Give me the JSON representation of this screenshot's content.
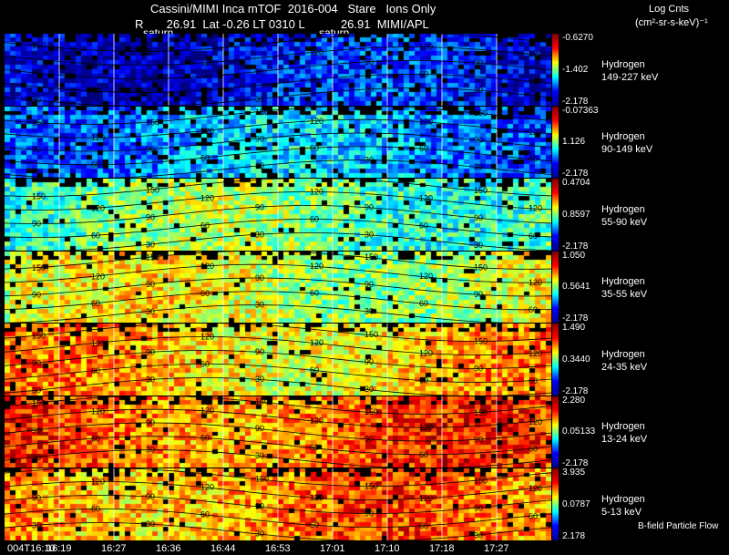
{
  "header": {
    "title": "Cassini/MIMI Inca mTOF  2016-004   Stare   Ions Only",
    "subtitle": "R       26.91  Lat -0.26 LT 0310 L           26.91  MIMI/APL",
    "saturn_label_1": "saturn",
    "saturn_label_2": "saturn",
    "units_title": "Log Cnts",
    "units": "(cm²-sr-s-keV)⁻¹"
  },
  "footer": {
    "bfield_label": "B-field Particle Flow"
  },
  "chart_data": {
    "type": "heatmap",
    "x_ticks": [
      "004T16:10",
      "16:19",
      "16:27",
      "16:36",
      "16:44",
      "16:53",
      "17:01",
      "17:10",
      "17:18",
      "17:27"
    ],
    "contour_levels": [
      "30",
      "60",
      "90",
      "120",
      "150"
    ],
    "panels": [
      {
        "species": "Hydrogen",
        "energy": "149-227 keV",
        "cbar_max": "-0.6270",
        "cbar_mid": "-1.402",
        "cbar_min": "-2.178",
        "level": 0.12
      },
      {
        "species": "Hydrogen",
        "energy": "90-149 keV",
        "cbar_max": "-0.07363",
        "cbar_mid": "1.126",
        "cbar_min": "-2.178",
        "level": 0.28
      },
      {
        "species": "Hydrogen",
        "energy": "55-90 keV",
        "cbar_max": "0.4704",
        "cbar_mid": "0.8597",
        "cbar_min": "-2.178",
        "level": 0.48
      },
      {
        "species": "Hydrogen",
        "energy": "35-55 keV",
        "cbar_max": "1.050",
        "cbar_mid": "0.5641",
        "cbar_min": "-2.178",
        "level": 0.58
      },
      {
        "species": "Hydrogen",
        "energy": "24-35 keV",
        "cbar_max": "1.490",
        "cbar_mid": "0.3440",
        "cbar_min": "-2.178",
        "level": 0.68
      },
      {
        "species": "Hydrogen",
        "energy": "13-24 keV",
        "cbar_max": "2.280",
        "cbar_mid": "0.05133",
        "cbar_min": "-2.178",
        "level": 0.78
      },
      {
        "species": "Hydrogen",
        "energy": "5-13 keV",
        "cbar_max": "3.935",
        "cbar_mid": "0.0787",
        "cbar_min": "2.178",
        "level": 0.74
      }
    ]
  }
}
